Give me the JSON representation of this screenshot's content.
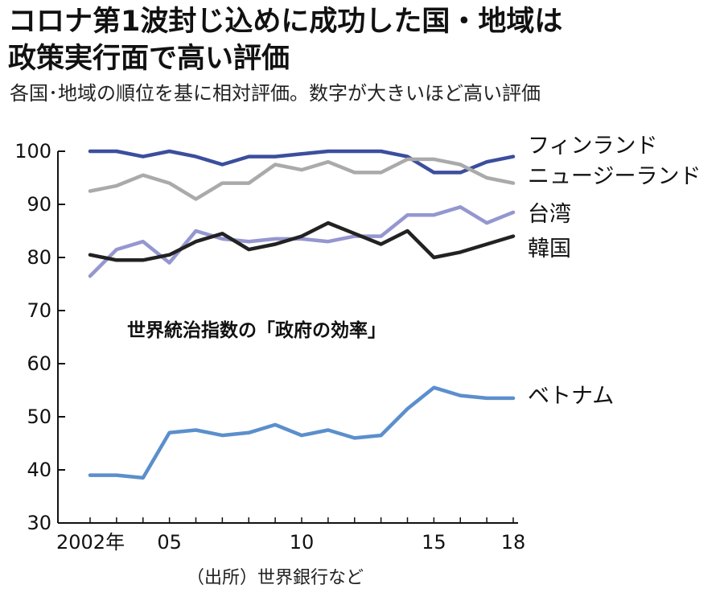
{
  "header": {
    "title_line1": "コロナ第1波封じ込めに成功した国・地域は",
    "title_line2": "政策実行面で高い評価",
    "subtitle": "各国･地域の順位を基に相対評価。数字が大きいほど高い評価"
  },
  "source": "（出所）世界銀行など",
  "chart_data": {
    "type": "line",
    "title": "コロナ第1波封じ込めに成功した国・地域は政策実行面で高い評価",
    "subtitle": "各国･地域の順位を基に相対評価。数字が大きいほど高い評価",
    "annotation": "世界統治指数の「政府の効率」",
    "xlabel": "",
    "ylabel": "",
    "ylim": [
      30,
      100
    ],
    "yticks": [
      30,
      40,
      50,
      60,
      70,
      80,
      90,
      100
    ],
    "xlim": [
      2002,
      2018
    ],
    "xticks": [
      {
        "value": 2002,
        "label": "2002年"
      },
      {
        "value": 2005,
        "label": "05"
      },
      {
        "value": 2010,
        "label": "10"
      },
      {
        "value": 2015,
        "label": "15"
      },
      {
        "value": 2018,
        "label": "18"
      }
    ],
    "grid": false,
    "legend": "labels-at-line-ends-right",
    "x": [
      2002,
      2003,
      2004,
      2005,
      2006,
      2007,
      2008,
      2009,
      2010,
      2011,
      2012,
      2013,
      2014,
      2015,
      2016,
      2017,
      2018
    ],
    "series": [
      {
        "name": "フィンランド",
        "color": "#3b4e9e",
        "values": [
          100,
          100,
          99,
          100,
          99,
          97.5,
          99,
          99,
          99.5,
          100,
          100,
          100,
          99,
          96,
          96,
          98,
          99
        ]
      },
      {
        "name": "ニュージーランド",
        "color": "#aaaaaa",
        "values": [
          92.5,
          93.5,
          95.5,
          94,
          91,
          94,
          94,
          97.5,
          96.5,
          98,
          96,
          96,
          98.5,
          98.5,
          97.5,
          95,
          94
        ]
      },
      {
        "name": "台湾",
        "color": "#9497cf",
        "values": [
          76.5,
          81.5,
          83,
          79,
          85,
          83.5,
          83,
          83.5,
          83.5,
          83,
          84,
          84,
          88,
          88,
          89.5,
          86.5,
          88.5
        ]
      },
      {
        "name": "韓国",
        "color": "#222222",
        "values": [
          80.5,
          79.5,
          79.5,
          80.5,
          83,
          84.5,
          81.5,
          82.5,
          84,
          86.5,
          84.5,
          82.5,
          85,
          80,
          81,
          82.5,
          84
        ]
      },
      {
        "name": "ベトナム",
        "color": "#5b8fcc",
        "values": [
          39,
          39,
          38.5,
          47,
          47.5,
          46.5,
          47,
          48.5,
          46.5,
          47.5,
          46,
          46.5,
          51.5,
          55.5,
          54,
          53.5,
          53.5
        ]
      }
    ]
  }
}
